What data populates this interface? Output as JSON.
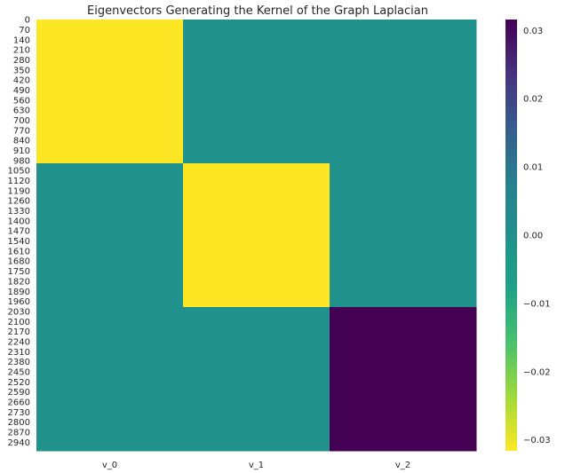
{
  "chart_data": {
    "type": "heatmap",
    "title": "Eigenvectors Generating the Kernel of the Graph Laplacian",
    "xlabel": "",
    "ylabel": "",
    "columns": [
      "v_0",
      "v_1",
      "v_2"
    ],
    "row_count": 3000,
    "row_tick_labels": [
      "0",
      "70",
      "140",
      "210",
      "280",
      "350",
      "420",
      "490",
      "560",
      "630",
      "700",
      "770",
      "840",
      "910",
      "980",
      "1050",
      "1120",
      "1190",
      "1260",
      "1330",
      "1400",
      "1470",
      "1540",
      "1610",
      "1680",
      "1750",
      "1820",
      "1890",
      "1960",
      "2030",
      "2100",
      "2170",
      "2240",
      "2310",
      "2380",
      "2450",
      "2520",
      "2590",
      "2660",
      "2730",
      "2800",
      "2870",
      "2940"
    ],
    "row_tick_values": [
      0,
      70,
      140,
      210,
      280,
      350,
      420,
      490,
      560,
      630,
      700,
      770,
      840,
      910,
      980,
      1050,
      1120,
      1190,
      1260,
      1330,
      1400,
      1470,
      1540,
      1610,
      1680,
      1750,
      1820,
      1890,
      1960,
      2030,
      2100,
      2170,
      2240,
      2310,
      2380,
      2450,
      2520,
      2590,
      2660,
      2730,
      2800,
      2870,
      2940
    ],
    "blocks": [
      {
        "column": "v_0",
        "row_start": 0,
        "row_end": 1000,
        "value": -0.0316
      },
      {
        "column": "v_0",
        "row_start": 1000,
        "row_end": 3000,
        "value": 0.0
      },
      {
        "column": "v_1",
        "row_start": 0,
        "row_end": 1000,
        "value": 0.0
      },
      {
        "column": "v_1",
        "row_start": 1000,
        "row_end": 2000,
        "value": -0.0316
      },
      {
        "column": "v_1",
        "row_start": 2000,
        "row_end": 3000,
        "value": 0.0
      },
      {
        "column": "v_2",
        "row_start": 0,
        "row_end": 2000,
        "value": 0.0
      },
      {
        "column": "v_2",
        "row_start": 2000,
        "row_end": 3000,
        "value": 0.0316
      }
    ],
    "colorbar": {
      "colormap": "viridis_r",
      "vmin": -0.0316,
      "vmax": 0.0316,
      "tick_labels": [
        "0.03",
        "0.02",
        "0.01",
        "0.00",
        "−0.01",
        "−0.02",
        "−0.03"
      ],
      "tick_values": [
        0.03,
        0.02,
        0.01,
        0.0,
        -0.01,
        -0.02,
        -0.03
      ]
    },
    "grid": false
  }
}
